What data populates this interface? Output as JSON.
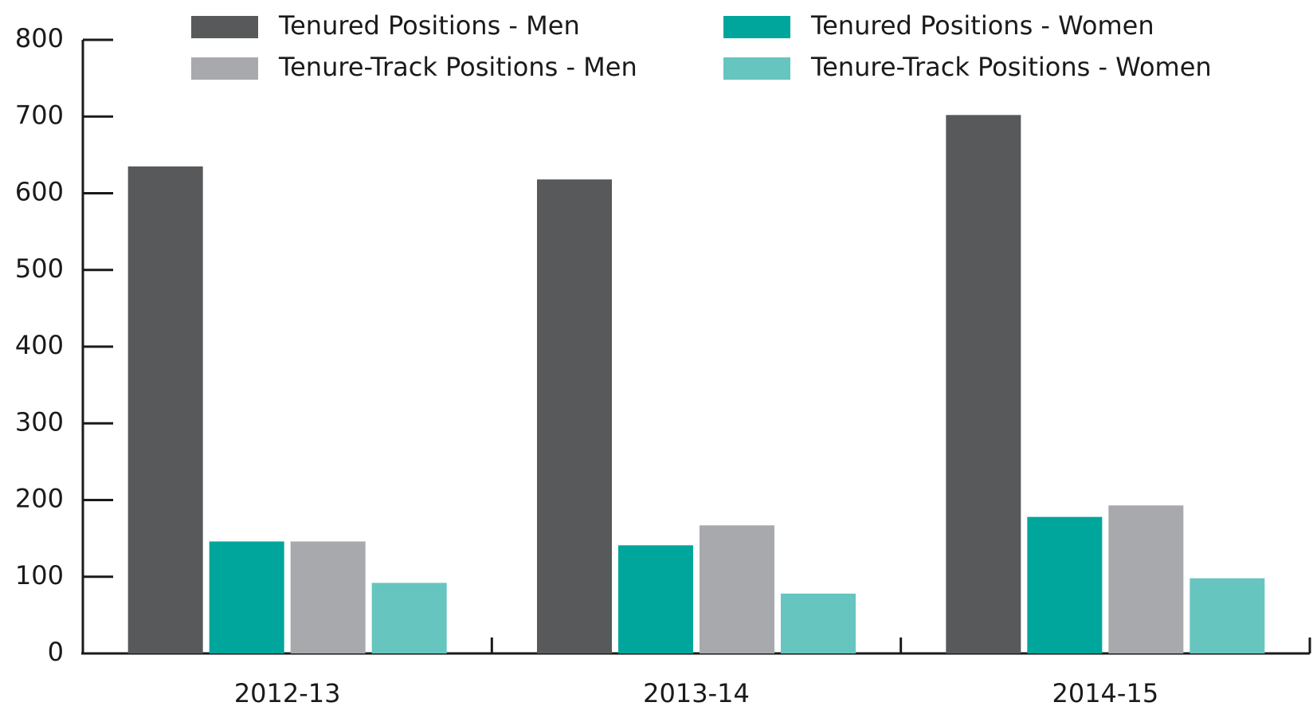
{
  "chart_data": {
    "type": "bar",
    "categories": [
      "2012-13",
      "2013-14",
      "2014-15"
    ],
    "series": [
      {
        "name": "Tenured Positions - Men",
        "color": "#58595b",
        "values": [
          635,
          618,
          702
        ]
      },
      {
        "name": "Tenured Positions - Women",
        "color": "#00a69c",
        "values": [
          146,
          141,
          178
        ]
      },
      {
        "name": "Tenure-Track Positions - Men",
        "color": "#a7a9ac",
        "values": [
          146,
          167,
          193
        ]
      },
      {
        "name": "Tenure-Track Positions - Women",
        "color": "#66c5bf",
        "values": [
          92,
          78,
          98
        ]
      }
    ],
    "ylim": [
      0,
      800
    ],
    "yticks": [
      0,
      100,
      200,
      300,
      400,
      500,
      600,
      700,
      800
    ],
    "grid": false,
    "legend": "top"
  }
}
